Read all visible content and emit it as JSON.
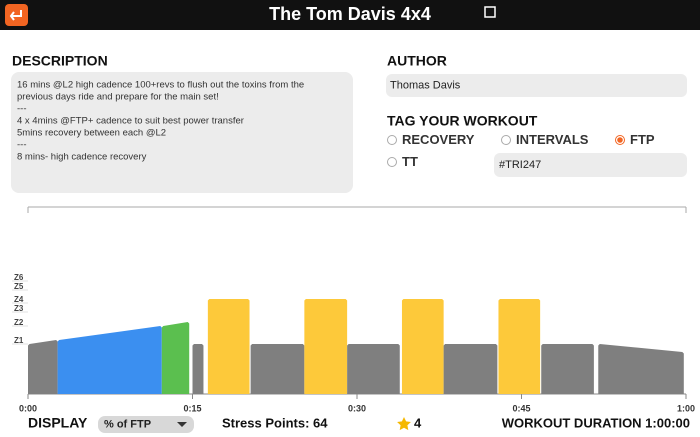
{
  "header": {
    "title": "The Tom Davis 4x4"
  },
  "description": {
    "label": "DESCRIPTION",
    "lines": [
      "16 mins @L2 high cadence 100+revs to flush out the toxins from the",
      "previous days ride and prepare for the main set!",
      "---",
      "4 x 4mins @FTP+  cadence to suit best power transfer",
      "5mins recovery between each @L2",
      "---",
      "8 mins- high cadence recovery"
    ]
  },
  "author": {
    "label": "AUTHOR",
    "value": "Thomas Davis"
  },
  "tags": {
    "label": "TAG YOUR WORKOUT",
    "options": [
      {
        "label": "RECOVERY",
        "selected": false
      },
      {
        "label": "INTERVALS",
        "selected": false
      },
      {
        "label": "FTP",
        "selected": true
      },
      {
        "label": "TT",
        "selected": false
      }
    ],
    "hashtag": "#TRI247"
  },
  "workout": {
    "xlim": [
      0,
      60
    ],
    "xticks": [
      {
        "value": 0,
        "label": "0:00"
      },
      {
        "value": 15,
        "label": "0:15"
      },
      {
        "value": 30,
        "label": "0:30"
      },
      {
        "value": 45,
        "label": "0:45"
      },
      {
        "value": 60,
        "label": "1:00"
      }
    ],
    "ylim": [
      0,
      187
    ],
    "yticks": [
      {
        "value": 50,
        "label": "Z1"
      },
      {
        "value": 68,
        "label": "Z2"
      },
      {
        "value": 82,
        "label": "Z3"
      },
      {
        "value": 91,
        "label": "Z4"
      },
      {
        "value": 104,
        "label": "Z5"
      },
      {
        "value": 113,
        "label": "Z6"
      }
    ],
    "blocks": [
      {
        "start": 0,
        "end": 2.7,
        "power_start": 50,
        "power_end": 54,
        "color": "#7f7f7f"
      },
      {
        "start": 2.7,
        "end": 12.2,
        "power_start": 54,
        "power_end": 68,
        "color": "#3b8ff0"
      },
      {
        "start": 12.2,
        "end": 14.7,
        "power_start": 68,
        "power_end": 72,
        "color": "#5bbf4f"
      },
      {
        "start": 15.0,
        "end": 16.0,
        "power_start": 50,
        "power_end": 50,
        "color": "#7f7f7f"
      },
      {
        "start": 16.4,
        "end": 20.2,
        "power_start": 95,
        "power_end": 95,
        "color": "#fdc93a"
      },
      {
        "start": 20.3,
        "end": 25.2,
        "power_start": 50,
        "power_end": 50,
        "color": "#7f7f7f"
      },
      {
        "start": 25.2,
        "end": 29.1,
        "power_start": 95,
        "power_end": 95,
        "color": "#fdc93a"
      },
      {
        "start": 29.1,
        "end": 33.9,
        "power_start": 50,
        "power_end": 50,
        "color": "#7f7f7f"
      },
      {
        "start": 34.1,
        "end": 37.9,
        "power_start": 95,
        "power_end": 95,
        "color": "#fdc93a"
      },
      {
        "start": 37.9,
        "end": 42.8,
        "power_start": 50,
        "power_end": 50,
        "color": "#7f7f7f"
      },
      {
        "start": 42.9,
        "end": 46.7,
        "power_start": 95,
        "power_end": 95,
        "color": "#fdc93a"
      },
      {
        "start": 46.8,
        "end": 51.6,
        "power_start": 50,
        "power_end": 50,
        "color": "#7f7f7f"
      },
      {
        "start": 52.0,
        "end": 59.8,
        "power_start": 50,
        "power_end": 42,
        "color": "#7f7f7f"
      }
    ]
  },
  "footer": {
    "display_label": "DISPLAY",
    "display_value": "% of FTP",
    "stress_points": "Stress Points: 64",
    "rating": "4",
    "duration": "WORKOUT DURATION 1:00:00"
  }
}
